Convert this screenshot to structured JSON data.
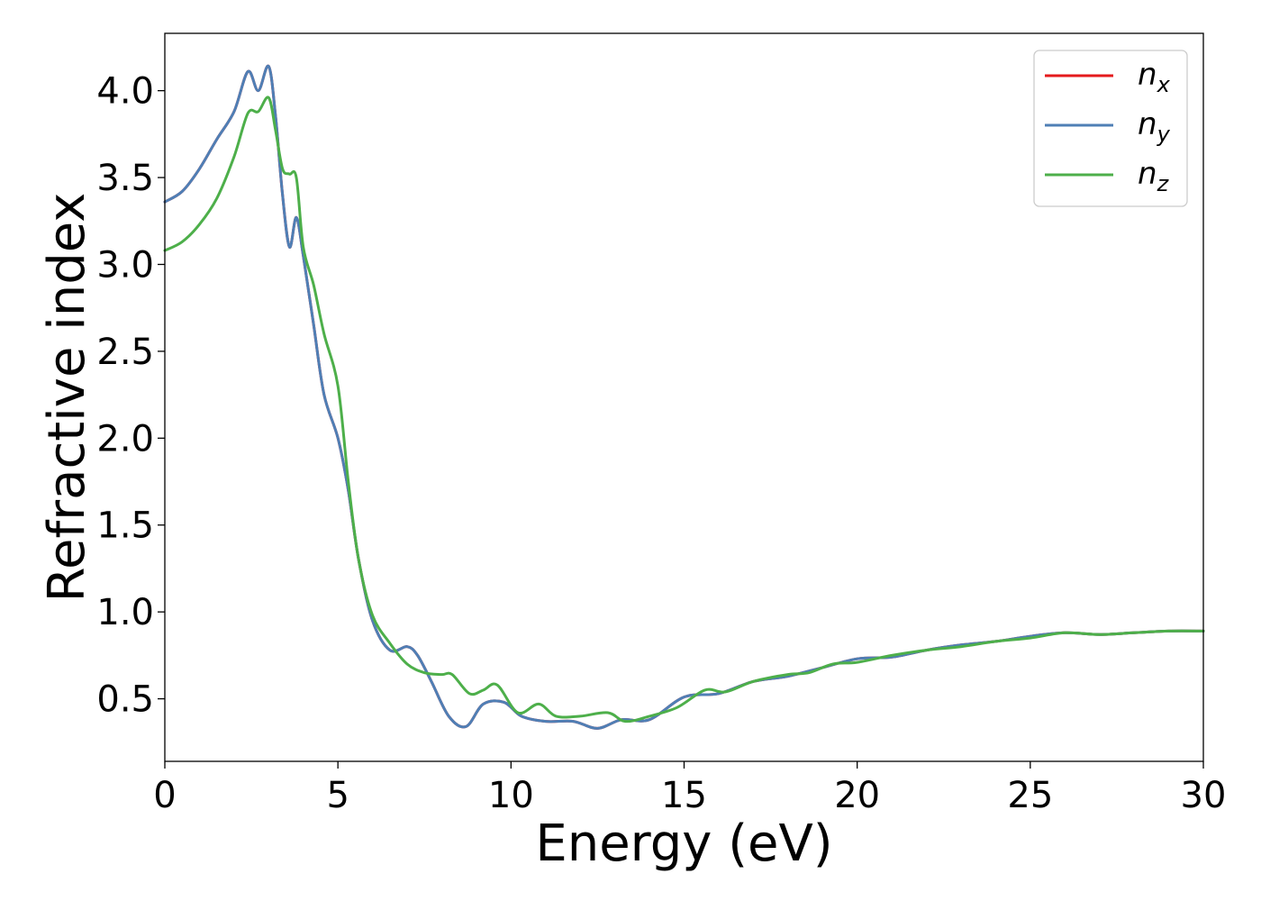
{
  "chart_data": {
    "type": "line",
    "title": "",
    "xlabel": "Energy (eV)",
    "ylabel": "Refractive index",
    "xlim": [
      0,
      30
    ],
    "ylim": [
      0.14,
      4.33
    ],
    "xticks": [
      0,
      5,
      10,
      15,
      20,
      25,
      30
    ],
    "xtick_labels": [
      "0",
      "5",
      "10",
      "15",
      "20",
      "25",
      "30"
    ],
    "yticks": [
      0.5,
      1.0,
      1.5,
      2.0,
      2.5,
      3.0,
      3.5,
      4.0
    ],
    "ytick_labels": [
      "0.5",
      "1.0",
      "1.5",
      "2.0",
      "2.5",
      "3.0",
      "3.5",
      "4.0"
    ],
    "grid": false,
    "legend_position": "top-right",
    "series": [
      {
        "name": "n_x",
        "label_base": "n",
        "label_sub": "x",
        "color": "#e41a1c",
        "x": [
          0,
          0.5,
          1.0,
          1.5,
          2.0,
          2.4,
          2.7,
          3.0,
          3.2,
          3.4,
          3.6,
          3.8,
          4.0,
          4.3,
          4.6,
          5.0,
          5.3,
          5.6,
          6.0,
          6.5,
          7.0,
          7.3,
          7.7,
          8.2,
          8.7,
          9.2,
          9.8,
          10.3,
          11.0,
          11.8,
          12.5,
          13.2,
          14.0,
          15.0,
          16.0,
          17.0,
          18.0,
          19.0,
          20.0,
          21.0,
          22.0,
          23.0,
          24.0,
          25.0,
          26.0,
          27.0,
          28.0,
          29.0,
          30.0
        ],
        "y": [
          3.36,
          3.42,
          3.55,
          3.72,
          3.88,
          4.11,
          4.0,
          4.14,
          3.85,
          3.4,
          3.1,
          3.27,
          3.05,
          2.65,
          2.25,
          2.0,
          1.7,
          1.3,
          0.95,
          0.78,
          0.8,
          0.75,
          0.6,
          0.4,
          0.34,
          0.47,
          0.48,
          0.4,
          0.37,
          0.37,
          0.33,
          0.38,
          0.38,
          0.51,
          0.53,
          0.6,
          0.63,
          0.68,
          0.73,
          0.74,
          0.78,
          0.81,
          0.83,
          0.86,
          0.88,
          0.87,
          0.88,
          0.89,
          0.89
        ]
      },
      {
        "name": "n_y",
        "label_base": "n",
        "label_sub": "y",
        "color": "#4f7fb5",
        "x": [
          0,
          0.5,
          1.0,
          1.5,
          2.0,
          2.4,
          2.7,
          3.0,
          3.2,
          3.4,
          3.6,
          3.8,
          4.0,
          4.3,
          4.6,
          5.0,
          5.3,
          5.6,
          6.0,
          6.5,
          7.0,
          7.3,
          7.7,
          8.2,
          8.7,
          9.2,
          9.8,
          10.3,
          11.0,
          11.8,
          12.5,
          13.2,
          14.0,
          15.0,
          16.0,
          17.0,
          18.0,
          19.0,
          20.0,
          21.0,
          22.0,
          23.0,
          24.0,
          25.0,
          26.0,
          27.0,
          28.0,
          29.0,
          30.0
        ],
        "y": [
          3.36,
          3.42,
          3.55,
          3.72,
          3.88,
          4.11,
          4.0,
          4.14,
          3.85,
          3.4,
          3.1,
          3.27,
          3.05,
          2.65,
          2.25,
          2.0,
          1.7,
          1.3,
          0.95,
          0.78,
          0.8,
          0.75,
          0.6,
          0.4,
          0.34,
          0.47,
          0.48,
          0.4,
          0.37,
          0.37,
          0.33,
          0.38,
          0.38,
          0.51,
          0.53,
          0.6,
          0.63,
          0.68,
          0.73,
          0.74,
          0.78,
          0.81,
          0.83,
          0.86,
          0.88,
          0.87,
          0.88,
          0.89,
          0.89
        ]
      },
      {
        "name": "n_z",
        "label_base": "n",
        "label_sub": "z",
        "color": "#4daf4a",
        "x": [
          0,
          0.5,
          1.0,
          1.5,
          2.0,
          2.4,
          2.7,
          3.0,
          3.2,
          3.4,
          3.6,
          3.8,
          4.0,
          4.3,
          4.6,
          5.0,
          5.3,
          5.6,
          6.0,
          6.5,
          7.0,
          7.5,
          8.0,
          8.3,
          8.8,
          9.2,
          9.6,
          10.2,
          10.8,
          11.3,
          12.0,
          12.8,
          13.3,
          14.0,
          14.8,
          15.6,
          16.2,
          17.0,
          18.0,
          18.6,
          19.3,
          20.0,
          21.0,
          22.0,
          23.0,
          24.0,
          25.0,
          26.0,
          27.0,
          28.0,
          29.0,
          30.0
        ],
        "y": [
          3.08,
          3.13,
          3.23,
          3.38,
          3.62,
          3.87,
          3.88,
          3.96,
          3.77,
          3.55,
          3.52,
          3.5,
          3.1,
          2.88,
          2.6,
          2.3,
          1.75,
          1.3,
          0.98,
          0.82,
          0.7,
          0.65,
          0.64,
          0.64,
          0.53,
          0.55,
          0.58,
          0.42,
          0.47,
          0.4,
          0.4,
          0.42,
          0.37,
          0.4,
          0.45,
          0.55,
          0.54,
          0.6,
          0.64,
          0.65,
          0.7,
          0.71,
          0.75,
          0.78,
          0.8,
          0.83,
          0.85,
          0.88,
          0.87,
          0.88,
          0.89,
          0.89
        ]
      }
    ]
  }
}
